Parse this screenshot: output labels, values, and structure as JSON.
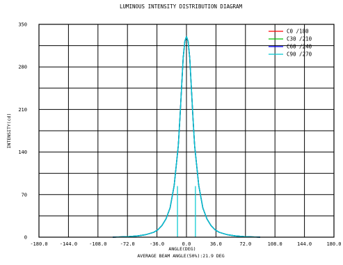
{
  "chart_data": {
    "type": "line",
    "title": "LUMINOUS INTENSITY DISTRIBUTION DIAGRAM",
    "xlabel": "ANGLE(DEG)",
    "ylabel": "INTENSITY(cd)",
    "footer": "AVERAGE BEAM ANGLE(50%):21.9 DEG",
    "xlim": [
      -180,
      180
    ],
    "ylim": [
      0,
      350
    ],
    "x_ticks": [
      "-180.0",
      "-144.0",
      "-108.0",
      "-72.0",
      "-36.0",
      "0.0",
      "36.0",
      "72.0",
      "108.0",
      "144.0",
      "180.0"
    ],
    "y_ticks": [
      "0",
      "70",
      "140",
      "210",
      "280",
      "350"
    ],
    "grid": true,
    "legend_position": "top-right",
    "x": [
      -90,
      -80,
      -70,
      -60,
      -50,
      -40,
      -35,
      -30,
      -25,
      -20,
      -15,
      -10,
      -8,
      -6,
      -4,
      -2,
      0,
      2,
      4,
      6,
      8,
      10,
      15,
      20,
      25,
      30,
      35,
      40,
      50,
      60,
      70,
      80,
      90
    ],
    "series": [
      {
        "name": "C0  /180",
        "color": "#ff0000",
        "values": [
          0,
          0.5,
          1,
          2,
          4,
          8,
          12,
          19,
          30,
          48,
          85,
          150,
          195,
          245,
          295,
          322,
          330,
          322,
          295,
          245,
          195,
          150,
          85,
          48,
          30,
          19,
          12,
          8,
          4,
          2,
          1,
          0.5,
          0
        ]
      },
      {
        "name": "C30 /210",
        "color": "#00c000",
        "values": [
          0,
          0.5,
          1,
          2,
          4,
          8,
          12,
          19,
          30,
          48,
          85,
          150,
          195,
          245,
          295,
          322,
          330,
          322,
          295,
          245,
          195,
          150,
          85,
          48,
          30,
          19,
          12,
          8,
          4,
          2,
          1,
          0.5,
          0
        ]
      },
      {
        "name": "C60 /240",
        "color": "#0000ff",
        "values": [
          0,
          0.5,
          1,
          2,
          4,
          8,
          12,
          19,
          30,
          48,
          85,
          150,
          195,
          245,
          295,
          322,
          330,
          322,
          295,
          245,
          195,
          150,
          85,
          48,
          30,
          19,
          12,
          8,
          4,
          2,
          1,
          0.5,
          0
        ]
      },
      {
        "name": "C90 /270",
        "color": "#00c8d0",
        "values": [
          0,
          0.5,
          1,
          2,
          4,
          8,
          12,
          19,
          30,
          48,
          85,
          150,
          195,
          245,
          295,
          322,
          330,
          322,
          295,
          245,
          195,
          150,
          85,
          48,
          30,
          19,
          12,
          8,
          4,
          2,
          1,
          0.5,
          0
        ]
      }
    ],
    "beam_angle_markers": [
      -10.95,
      10.95
    ]
  }
}
